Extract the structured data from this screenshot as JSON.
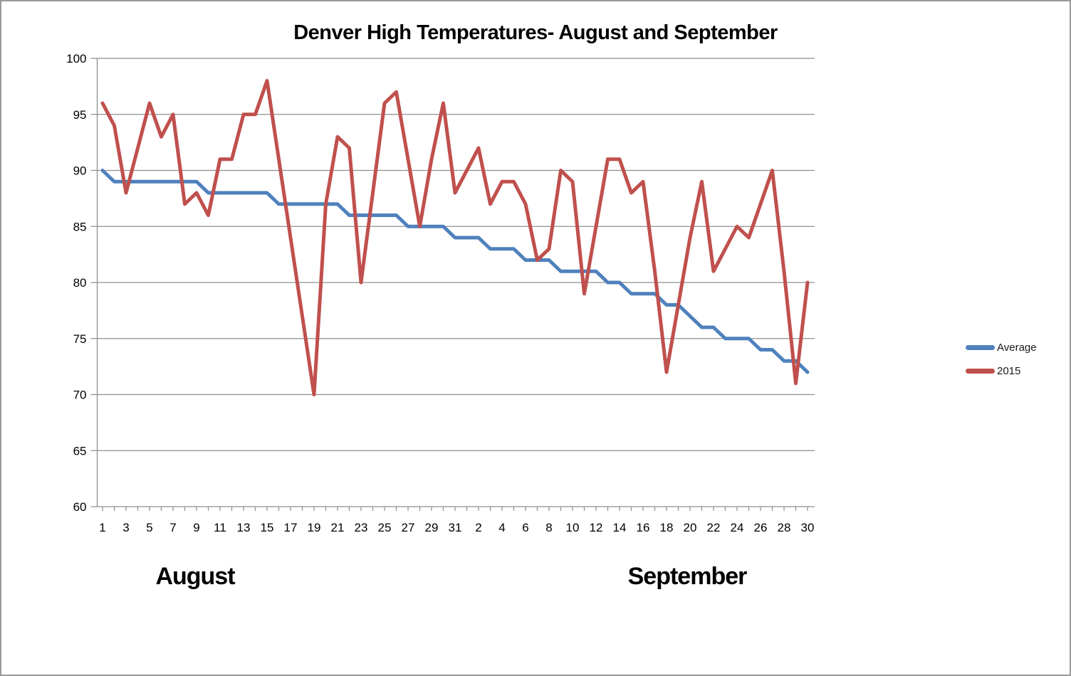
{
  "title": "Denver High Temperatures- August and September",
  "colors": {
    "average_line": "#4F81BD",
    "line_2015": "#C0504D",
    "gridline": "#8F8F8F",
    "text": "#000000",
    "page_border": "#999999"
  },
  "legend": {
    "entries": [
      "Average",
      "2015"
    ]
  },
  "chart_data": {
    "type": "line",
    "title": "Denver High Temperatures- August and September",
    "xlabel": "",
    "ylabel": "",
    "ylim": [
      60,
      100
    ],
    "y_ticks": [
      60,
      65,
      70,
      75,
      80,
      85,
      90,
      95,
      100
    ],
    "grid": "horizontal",
    "legend_position": "right",
    "months": [
      {
        "name": "August",
        "days": 31,
        "labeled_days": "odd"
      },
      {
        "name": "September",
        "days": 30,
        "labeled_days": "even"
      }
    ],
    "series": [
      {
        "name": "Average",
        "color": "#4F81BD",
        "values": [
          90,
          89,
          89,
          89,
          89,
          89,
          89,
          89,
          89,
          88,
          88,
          88,
          88,
          88,
          88,
          87,
          87,
          87,
          87,
          87,
          87,
          86,
          86,
          86,
          86,
          86,
          85,
          85,
          85,
          85,
          84,
          84,
          84,
          83,
          83,
          83,
          82,
          82,
          82,
          81,
          81,
          81,
          81,
          80,
          80,
          79,
          79,
          79,
          78,
          78,
          77,
          76,
          76,
          75,
          75,
          75,
          74,
          74,
          73,
          73,
          72
        ]
      },
      {
        "name": "2015",
        "color": "#C0504D",
        "values": [
          96,
          94,
          88,
          92,
          96,
          93,
          95,
          87,
          88,
          86,
          91,
          91,
          95,
          95,
          98,
          91,
          84,
          77,
          70,
          87,
          93,
          92,
          80,
          88,
          96,
          97,
          91,
          85,
          91,
          96,
          88,
          90,
          92,
          87,
          89,
          89,
          87,
          82,
          83,
          90,
          89,
          79,
          85,
          91,
          91,
          88,
          89,
          81,
          72,
          78,
          84,
          89,
          81,
          83,
          85,
          84,
          87,
          90,
          81,
          71,
          80
        ]
      }
    ]
  }
}
